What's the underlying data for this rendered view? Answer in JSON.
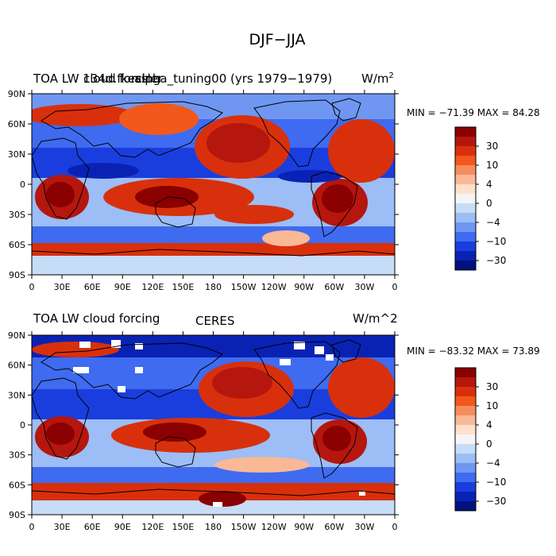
{
  "figure_title": "DJF−JJA",
  "chart_data": [
    {
      "type": "heatmap",
      "title_left": "TOA LW 134d.fkessler",
      "title_center": "cloud forcing",
      "title_overlay": "alpha_tuning00 (yrs 1979−1979)",
      "units_main": "W/m",
      "units_sup": "2",
      "stats": "MIN = −71.39  MAX =  84.28",
      "x_ticks": [
        "0",
        "30E",
        "60E",
        "90E",
        "120E",
        "150E",
        "180",
        "150W",
        "120W",
        "90W",
        "60W",
        "30W",
        "0"
      ],
      "y_ticks": [
        "90N",
        "60N",
        "30N",
        "0",
        "30S",
        "60S",
        "90S"
      ],
      "colorbar_labels": [
        "30",
        "10",
        "4",
        "0",
        "−4",
        "−10",
        "−30"
      ],
      "colorbar_colors": [
        "#8b0000",
        "#b5160e",
        "#d8300c",
        "#f2581c",
        "#f58c5e",
        "#f9b896",
        "#fde0cc",
        "#f5f5f5",
        "#c6dcf7",
        "#9cbdf5",
        "#6f97f2",
        "#3f6bf0",
        "#1a3ede",
        "#0a22b4",
        "#00127e"
      ]
    },
    {
      "type": "heatmap",
      "title_left": "TOA LW cloud forcing",
      "title_center": "CERES",
      "title_overlay": "",
      "units_main": "W/m^2",
      "units_sup": "",
      "stats": "MIN = −83.32  MAX =  73.89",
      "x_ticks": [
        "0",
        "30E",
        "60E",
        "90E",
        "120E",
        "150E",
        "180",
        "150W",
        "120W",
        "90W",
        "60W",
        "30W",
        "0"
      ],
      "y_ticks": [
        "90N",
        "60N",
        "30N",
        "0",
        "30S",
        "60S",
        "90S"
      ],
      "colorbar_labels": [
        "30",
        "10",
        "4",
        "0",
        "−4",
        "−10",
        "−30"
      ],
      "colorbar_colors": [
        "#8b0000",
        "#b5160e",
        "#d8300c",
        "#f2581c",
        "#f58c5e",
        "#f9b896",
        "#fde0cc",
        "#f5f5f5",
        "#c6dcf7",
        "#9cbdf5",
        "#6f97f2",
        "#3f6bf0",
        "#1a3ede",
        "#0a22b4",
        "#00127e"
      ]
    }
  ]
}
